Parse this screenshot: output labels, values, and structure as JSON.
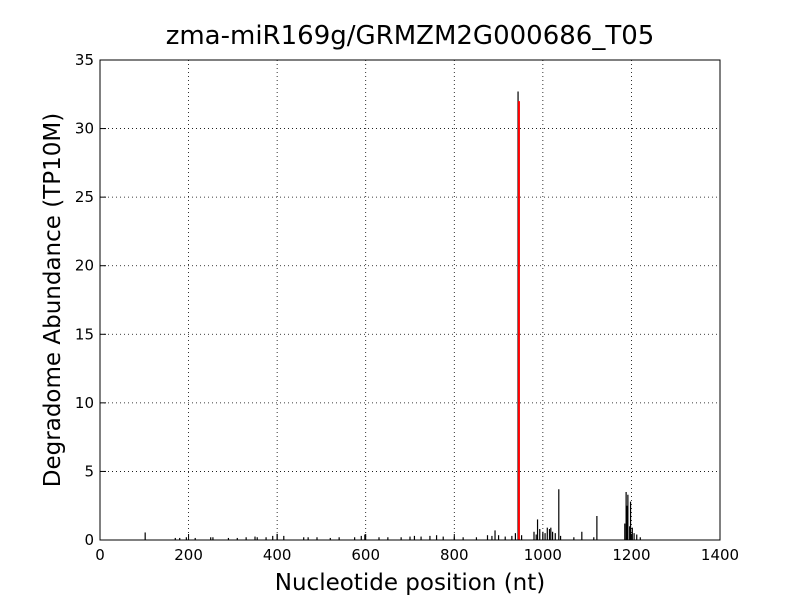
{
  "chart_data": {
    "type": "bar",
    "title": "zma-miR169g/GRMZM2G000686_T05",
    "x_label": "Nucleotide position (nt)",
    "y_label": "Degradome Abundance (TP10M)",
    "xlim": [
      0,
      1400
    ],
    "xticks": [
      0,
      200,
      400,
      600,
      800,
      1000,
      1200,
      1400
    ],
    "ylim": [
      0,
      35
    ],
    "yticks": [
      0,
      5,
      10,
      15,
      20,
      25,
      30,
      35
    ],
    "grid": true,
    "series": [
      {
        "color": "#000000",
        "x": [
          102,
          170,
          180,
          195,
          215,
          250,
          255,
          290,
          310,
          330,
          350,
          355,
          375,
          390,
          400,
          415,
          460,
          470,
          490,
          520,
          540,
          575,
          590,
          598,
          630,
          650,
          680,
          700,
          710,
          725,
          745,
          760,
          775,
          800,
          820,
          850,
          875,
          885,
          892,
          900,
          915,
          930,
          938,
          944,
          952,
          980,
          985,
          988,
          993,
          1000,
          1005,
          1010,
          1015,
          1018,
          1022,
          1028,
          1036,
          1040,
          1070,
          1088,
          1115,
          1122,
          1185,
          1188,
          1190,
          1192,
          1196,
          1198,
          1202,
          1206,
          1212,
          1220
        ],
        "values": [
          0.55,
          0.15,
          0.15,
          0.2,
          0.15,
          0.2,
          0.2,
          0.15,
          0.15,
          0.2,
          0.25,
          0.2,
          0.2,
          0.3,
          0.45,
          0.3,
          0.2,
          0.2,
          0.2,
          0.15,
          0.2,
          0.2,
          0.3,
          0.4,
          0.2,
          0.2,
          0.2,
          0.25,
          0.3,
          0.25,
          0.3,
          0.35,
          0.25,
          0.2,
          0.2,
          0.2,
          0.35,
          0.3,
          0.7,
          0.35,
          0.25,
          0.3,
          0.5,
          32.7,
          0.35,
          0.6,
          0.4,
          1.5,
          0.8,
          0.6,
          0.5,
          0.9,
          0.8,
          0.9,
          0.6,
          0.5,
          3.7,
          0.3,
          0.2,
          0.6,
          0.2,
          1.75,
          1.2,
          3.5,
          2.5,
          3.3,
          1.0,
          2.8,
          0.9,
          0.5,
          0.4,
          0.2
        ]
      },
      {
        "color": "#ff0000",
        "x": [
          946
        ],
        "values": [
          32
        ]
      }
    ]
  }
}
